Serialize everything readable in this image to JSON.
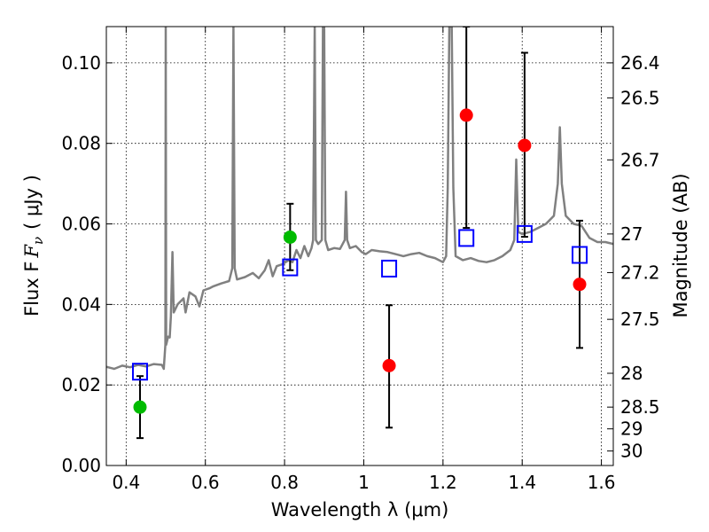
{
  "chart_data": {
    "type": "scatter",
    "title": "",
    "xlabel": "Wavelength  λ (μm)",
    "ylabel": "Flux  F",
    "ylabel_sub": "ν",
    "ylabel_unit": "( μJy )",
    "y2label": "Magnitude (AB)",
    "xlim": [
      0.35,
      1.63
    ],
    "ylim": [
      0.0,
      0.109
    ],
    "grid": true,
    "x_ticks": [
      0.4,
      0.6,
      0.8,
      1.0,
      1.2,
      1.4,
      1.6
    ],
    "x_tick_labels": [
      "0.4",
      "0.6",
      "0.8",
      "1",
      "1.2",
      "1.4",
      "1.6"
    ],
    "y_ticks": [
      0.0,
      0.02,
      0.04,
      0.06,
      0.08,
      0.1
    ],
    "y_tick_labels": [
      "0.00",
      "0.02",
      "0.04",
      "0.06",
      "0.08",
      "0.10"
    ],
    "y2_ticks": [
      {
        "label": "26.4",
        "flux": 0.1
      },
      {
        "label": "26.5",
        "flux": 0.0913
      },
      {
        "label": "26.7",
        "flux": 0.0759
      },
      {
        "label": "27",
        "flux": 0.0575
      },
      {
        "label": "27.2",
        "flux": 0.0479
      },
      {
        "label": "27.5",
        "flux": 0.0363
      },
      {
        "label": "28",
        "flux": 0.0229
      },
      {
        "label": "28.5",
        "flux": 0.0145
      },
      {
        "label": "29",
        "flux": 0.0091
      },
      {
        "label": "30",
        "flux": 0.0036
      }
    ],
    "spectrum": {
      "color": "#808080",
      "points": [
        [
          0.35,
          0.0245
        ],
        [
          0.37,
          0.024
        ],
        [
          0.39,
          0.0248
        ],
        [
          0.41,
          0.0244
        ],
        [
          0.43,
          0.025
        ],
        [
          0.45,
          0.0246
        ],
        [
          0.47,
          0.0252
        ],
        [
          0.49,
          0.025
        ],
        [
          0.495,
          0.024
        ],
        [
          0.499,
          0.03
        ],
        [
          0.5,
          0.109
        ],
        [
          0.501,
          0.03
        ],
        [
          0.506,
          0.032
        ],
        [
          0.51,
          0.0318
        ],
        [
          0.513,
          0.037
        ],
        [
          0.517,
          0.053
        ],
        [
          0.52,
          0.038
        ],
        [
          0.53,
          0.04
        ],
        [
          0.545,
          0.0415
        ],
        [
          0.55,
          0.038
        ],
        [
          0.56,
          0.043
        ],
        [
          0.575,
          0.042
        ],
        [
          0.585,
          0.0395
        ],
        [
          0.595,
          0.0435
        ],
        [
          0.61,
          0.044
        ],
        [
          0.62,
          0.0445
        ],
        [
          0.64,
          0.0452
        ],
        [
          0.66,
          0.0458
        ],
        [
          0.668,
          0.049
        ],
        [
          0.671,
          0.109
        ],
        [
          0.674,
          0.049
        ],
        [
          0.68,
          0.0462
        ],
        [
          0.7,
          0.0468
        ],
        [
          0.72,
          0.0478
        ],
        [
          0.735,
          0.0465
        ],
        [
          0.75,
          0.0485
        ],
        [
          0.76,
          0.051
        ],
        [
          0.77,
          0.047
        ],
        [
          0.78,
          0.0495
        ],
        [
          0.795,
          0.05
        ],
        [
          0.81,
          0.051
        ],
        [
          0.82,
          0.0505
        ],
        [
          0.83,
          0.0535
        ],
        [
          0.84,
          0.0515
        ],
        [
          0.85,
          0.0545
        ],
        [
          0.86,
          0.052
        ],
        [
          0.868,
          0.054
        ],
        [
          0.872,
          0.056
        ],
        [
          0.876,
          0.109
        ],
        [
          0.879,
          0.056
        ],
        [
          0.885,
          0.055
        ],
        [
          0.894,
          0.056
        ],
        [
          0.897,
          0.109
        ],
        [
          0.9,
          0.109
        ],
        [
          0.903,
          0.056
        ],
        [
          0.91,
          0.0535
        ],
        [
          0.925,
          0.054
        ],
        [
          0.94,
          0.0538
        ],
        [
          0.952,
          0.056
        ],
        [
          0.955,
          0.068
        ],
        [
          0.958,
          0.056
        ],
        [
          0.965,
          0.054
        ],
        [
          0.98,
          0.0545
        ],
        [
          0.995,
          0.053
        ],
        [
          1.005,
          0.0525
        ],
        [
          1.02,
          0.0535
        ],
        [
          1.04,
          0.0532
        ],
        [
          1.06,
          0.053
        ],
        [
          1.08,
          0.0525
        ],
        [
          1.1,
          0.052
        ],
        [
          1.12,
          0.0525
        ],
        [
          1.14,
          0.0528
        ],
        [
          1.16,
          0.052
        ],
        [
          1.18,
          0.0515
        ],
        [
          1.2,
          0.0505
        ],
        [
          1.208,
          0.052
        ],
        [
          1.212,
          0.069
        ],
        [
          1.216,
          0.109
        ],
        [
          1.222,
          0.109
        ],
        [
          1.226,
          0.069
        ],
        [
          1.232,
          0.052
        ],
        [
          1.25,
          0.051
        ],
        [
          1.27,
          0.0515
        ],
        [
          1.29,
          0.0508
        ],
        [
          1.31,
          0.0505
        ],
        [
          1.33,
          0.051
        ],
        [
          1.35,
          0.052
        ],
        [
          1.37,
          0.0535
        ],
        [
          1.38,
          0.056
        ],
        [
          1.385,
          0.076
        ],
        [
          1.39,
          0.058
        ],
        [
          1.4,
          0.0575
        ],
        [
          1.42,
          0.058
        ],
        [
          1.44,
          0.059
        ],
        [
          1.46,
          0.06
        ],
        [
          1.48,
          0.062
        ],
        [
          1.49,
          0.07
        ],
        [
          1.495,
          0.084
        ],
        [
          1.5,
          0.07
        ],
        [
          1.51,
          0.062
        ],
        [
          1.53,
          0.06
        ],
        [
          1.55,
          0.0595
        ],
        [
          1.57,
          0.0565
        ],
        [
          1.59,
          0.0555
        ],
        [
          1.61,
          0.0555
        ],
        [
          1.63,
          0.055
        ]
      ]
    },
    "model_photometry": {
      "marker": "open-square",
      "color": "#0000ff",
      "points": [
        {
          "x": 0.435,
          "y": 0.0233
        },
        {
          "x": 0.814,
          "y": 0.0492
        },
        {
          "x": 1.064,
          "y": 0.0489
        },
        {
          "x": 1.259,
          "y": 0.0565
        },
        {
          "x": 1.406,
          "y": 0.0575
        },
        {
          "x": 1.545,
          "y": 0.0523
        }
      ]
    },
    "observed_optical": {
      "marker": "filled-circle",
      "color": "#00bb00",
      "points": [
        {
          "x": 0.435,
          "y": 0.0145,
          "ylo": 0.0068,
          "yhi": 0.0222
        },
        {
          "x": 0.814,
          "y": 0.0567,
          "ylo": 0.0485,
          "yhi": 0.065
        }
      ]
    },
    "observed_nir": {
      "marker": "filled-circle",
      "color": "#ff0000",
      "points": [
        {
          "x": 1.064,
          "y": 0.0248,
          "ylo": 0.0094,
          "yhi": 0.0398
        },
        {
          "x": 1.259,
          "y": 0.087,
          "ylo": 0.059,
          "yhi": 0.109
        },
        {
          "x": 1.406,
          "y": 0.0795,
          "ylo": 0.0568,
          "yhi": 0.1025
        },
        {
          "x": 1.545,
          "y": 0.045,
          "ylo": 0.0292,
          "yhi": 0.0608
        }
      ]
    }
  }
}
